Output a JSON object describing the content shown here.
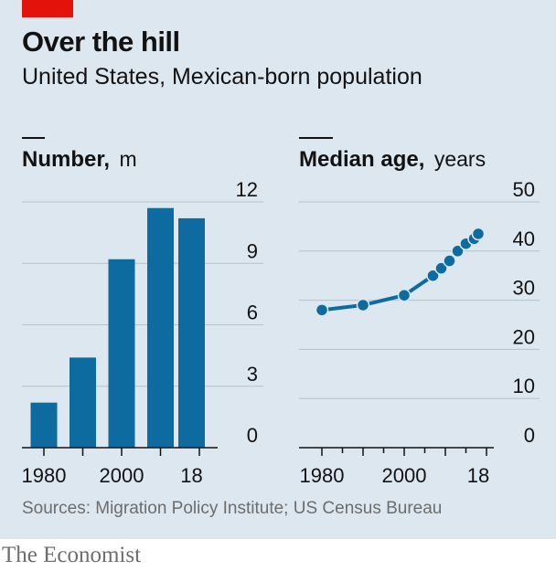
{
  "header": {
    "title": "Over the hill",
    "subtitle": "United States, Mexican-born population"
  },
  "footer": {
    "source": "Sources: Migration Policy Institute; US Census Bureau",
    "brand": "The Economist"
  },
  "colors": {
    "bar": "#0e6ba0",
    "line": "#0e6ba0",
    "grid": "#b3c2cc",
    "accent": "#e3120b",
    "background": "#dce7ef"
  },
  "chart_data": [
    {
      "type": "bar",
      "title": "Number,",
      "unit": "m",
      "x": [
        1980,
        1990,
        2000,
        2010,
        2018
      ],
      "values": [
        2.2,
        4.4,
        9.2,
        11.7,
        11.2
      ],
      "ylim": [
        0,
        12
      ],
      "yticks": [
        "0",
        "3",
        "6",
        "9",
        "12"
      ],
      "xtick_labels": [
        "1980",
        "2000",
        "18"
      ],
      "grid": true
    },
    {
      "type": "line",
      "title": "Median age,",
      "unit": "years",
      "x": [
        1980,
        1990,
        2000,
        2007,
        2009,
        2011,
        2013,
        2015,
        2017,
        2018
      ],
      "values": [
        28,
        29,
        31,
        35,
        36.5,
        38,
        40,
        41.5,
        42.5,
        43.5
      ],
      "ylim": [
        0,
        50
      ],
      "yticks": [
        "0",
        "10",
        "20",
        "30",
        "40",
        "50"
      ],
      "xtick_labels": [
        "1980",
        "2000",
        "18"
      ],
      "grid": true
    }
  ]
}
